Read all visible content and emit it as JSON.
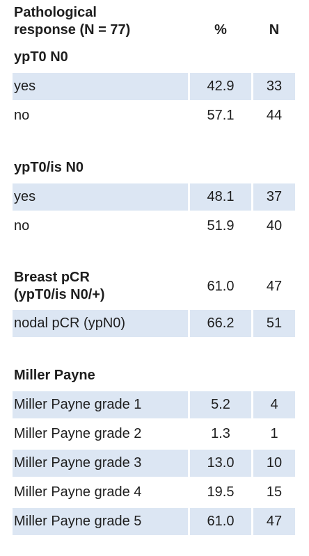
{
  "header": {
    "title": "Pathological\nresponse (N = 77)",
    "columns": [
      "%",
      "N"
    ]
  },
  "sections": [
    {
      "title": "ypT0 N0",
      "rows": [
        {
          "label": "yes",
          "percent": "42.9",
          "n": "33"
        },
        {
          "label": "no",
          "percent": "57.1",
          "n": "44"
        }
      ]
    },
    {
      "title": "ypT0/is N0",
      "rows": [
        {
          "label": "yes",
          "percent": "48.1",
          "n": "37"
        },
        {
          "label": "no",
          "percent": "51.9",
          "n": "40"
        }
      ]
    },
    {
      "title": "Breast pCR\n(ypT0/is N0/+)",
      "percent": "61.0",
      "n": "47",
      "rows": [
        {
          "label": "nodal pCR (ypN0)",
          "percent": "66.2",
          "n": "51"
        }
      ]
    },
    {
      "title": "Miller Payne",
      "rows": [
        {
          "label": "Miller Payne grade 1",
          "percent": "5.2",
          "n": "4"
        },
        {
          "label": "Miller Payne grade 2",
          "percent": "1.3",
          "n": "1"
        },
        {
          "label": "Miller Payne grade 3",
          "percent": "13.0",
          "n": "10"
        },
        {
          "label": "Miller Payne grade 4",
          "percent": "19.5",
          "n": "15"
        },
        {
          "label": "Miller Payne grade 5",
          "percent": "61.0",
          "n": "47"
        }
      ]
    }
  ]
}
